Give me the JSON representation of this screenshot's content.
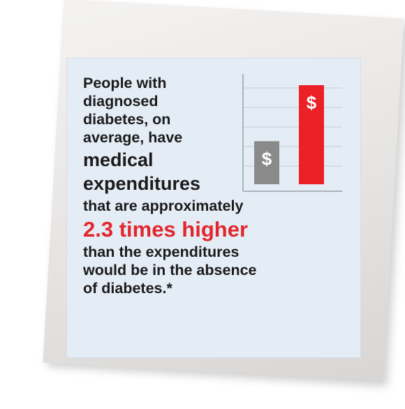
{
  "text": {
    "line1": "People with",
    "line2": "diagnosed",
    "line3": "diabetes, on",
    "line4": "average, have",
    "line5": "medical",
    "line6": "expenditures",
    "line7": "that are approximately",
    "line8": "2.3 times higher",
    "line9": "than the expenditures",
    "line10": "would be in the absence",
    "line11": "of diabetes.*"
  },
  "chart_data": {
    "type": "bar",
    "categories": [
      "",
      ""
    ],
    "values": [
      1,
      2.3
    ],
    "bar_labels": [
      "$",
      "$"
    ],
    "colors": [
      "#8a8a8a",
      "#ec2027"
    ],
    "grid": true
  }
}
